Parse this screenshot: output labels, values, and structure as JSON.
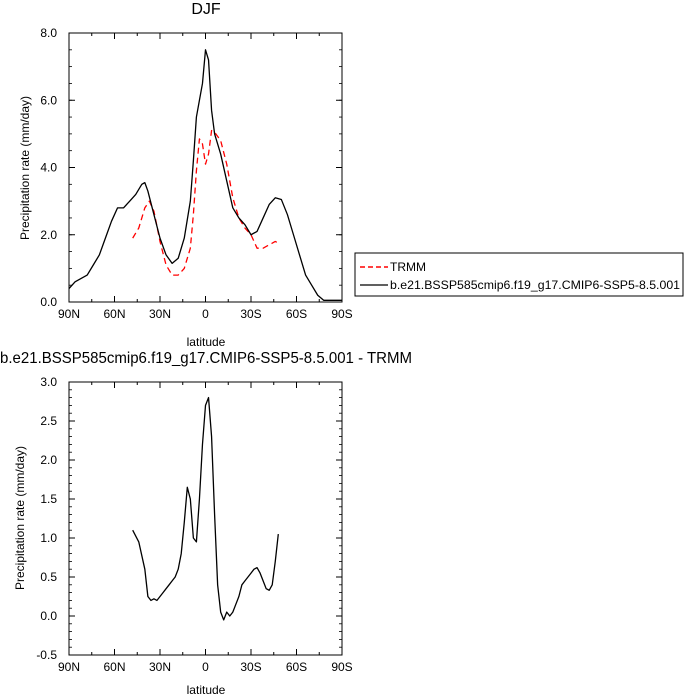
{
  "chart_data": [
    {
      "type": "line",
      "title": "DJF",
      "xlabel": "latitude",
      "ylabel": "Precipitation rate (mm/day)",
      "xlim": [
        90,
        -90
      ],
      "ylim": [
        0,
        8
      ],
      "xticks": [
        90,
        60,
        30,
        0,
        -30,
        -60,
        -90
      ],
      "xtick_labels": [
        "90N",
        "60N",
        "30N",
        "0",
        "30S",
        "60S",
        "90S"
      ],
      "yticks": [
        0,
        2,
        4,
        6,
        8
      ],
      "ytick_labels": [
        "0.0",
        "2.0",
        "4.0",
        "6.0",
        "8.0"
      ],
      "legend_position": "right",
      "series": [
        {
          "name": "TRMM",
          "color": "#ff0000",
          "style": "dashed",
          "x": [
            48,
            44,
            40,
            37,
            34,
            30,
            26,
            22,
            18,
            14,
            10,
            8,
            6,
            4,
            2,
            0,
            -2,
            -4,
            -6,
            -10,
            -14,
            -18,
            -22,
            -26,
            -30,
            -34,
            -38,
            -42,
            -46,
            -48
          ],
          "y": [
            1.9,
            2.2,
            2.8,
            3.0,
            2.7,
            1.8,
            1.1,
            0.8,
            0.8,
            1.0,
            1.6,
            2.6,
            3.9,
            4.85,
            4.7,
            4.1,
            4.4,
            5.1,
            5.05,
            4.8,
            4.1,
            3.1,
            2.5,
            2.2,
            2.0,
            1.6,
            1.6,
            1.7,
            1.8,
            1.75
          ]
        },
        {
          "name": "b.e21.BSSP585cmip6.f19_g17.CMIP6-SSP5-8.5.001",
          "color": "#000000",
          "style": "solid",
          "x": [
            90,
            86,
            82,
            78,
            74,
            70,
            66,
            62,
            58,
            54,
            50,
            46,
            42,
            40,
            38,
            34,
            30,
            26,
            22,
            18,
            14,
            10,
            8,
            6,
            4,
            2,
            0,
            -2,
            -4,
            -6,
            -8,
            -10,
            -14,
            -18,
            -22,
            -26,
            -30,
            -34,
            -38,
            -42,
            -46,
            -50,
            -54,
            -58,
            -62,
            -66,
            -70,
            -74,
            -78,
            -82,
            -86,
            -90
          ],
          "y": [
            0.4,
            0.6,
            0.7,
            0.8,
            1.1,
            1.4,
            1.9,
            2.4,
            2.8,
            2.8,
            3.0,
            3.2,
            3.5,
            3.55,
            3.3,
            2.6,
            1.9,
            1.4,
            1.15,
            1.3,
            1.9,
            3.0,
            4.2,
            5.5,
            6.0,
            6.5,
            7.5,
            7.2,
            5.7,
            5.0,
            4.7,
            4.4,
            3.6,
            2.8,
            2.5,
            2.3,
            2.0,
            2.1,
            2.5,
            2.9,
            3.1,
            3.05,
            2.6,
            2.0,
            1.4,
            0.8,
            0.5,
            0.2,
            0.05,
            0.05,
            0.05,
            0.05
          ]
        }
      ]
    },
    {
      "type": "line",
      "title": "b.e21.BSSP585cmip6.f19_g17.CMIP6-SSP5-8.5.001 - TRMM",
      "xlabel": "latitude",
      "ylabel": "Precipitation rate (mm/day)",
      "xlim": [
        90,
        -90
      ],
      "ylim": [
        -0.5,
        3.0
      ],
      "xticks": [
        90,
        60,
        30,
        0,
        -30,
        -60,
        -90
      ],
      "xtick_labels": [
        "90N",
        "60N",
        "30N",
        "0",
        "30S",
        "60S",
        "90S"
      ],
      "yticks": [
        -0.5,
        0,
        0.5,
        1.0,
        1.5,
        2.0,
        2.5,
        3.0
      ],
      "ytick_labels": [
        "-0.5",
        "0.0",
        "0.5",
        "1.0",
        "1.5",
        "2.0",
        "2.5",
        "3.0"
      ],
      "series": [
        {
          "name": "",
          "color": "#000000",
          "style": "solid",
          "x": [
            48,
            44,
            40,
            38,
            36,
            34,
            32,
            30,
            28,
            26,
            24,
            22,
            20,
            18,
            16,
            14,
            12,
            10,
            8,
            6,
            4,
            2,
            0,
            -2,
            -4,
            -6,
            -8,
            -10,
            -12,
            -14,
            -16,
            -18,
            -20,
            -22,
            -24,
            -26,
            -28,
            -30,
            -32,
            -34,
            -36,
            -38,
            -40,
            -42,
            -44,
            -46,
            -48
          ],
          "y": [
            1.1,
            0.95,
            0.6,
            0.25,
            0.2,
            0.22,
            0.2,
            0.25,
            0.3,
            0.35,
            0.4,
            0.45,
            0.5,
            0.6,
            0.8,
            1.2,
            1.65,
            1.5,
            1.0,
            0.95,
            1.5,
            2.2,
            2.7,
            2.8,
            2.3,
            1.3,
            0.4,
            0.05,
            -0.05,
            0.05,
            0.0,
            0.05,
            0.15,
            0.25,
            0.4,
            0.45,
            0.5,
            0.55,
            0.6,
            0.62,
            0.55,
            0.45,
            0.35,
            0.33,
            0.4,
            0.7,
            1.05
          ]
        }
      ]
    }
  ]
}
